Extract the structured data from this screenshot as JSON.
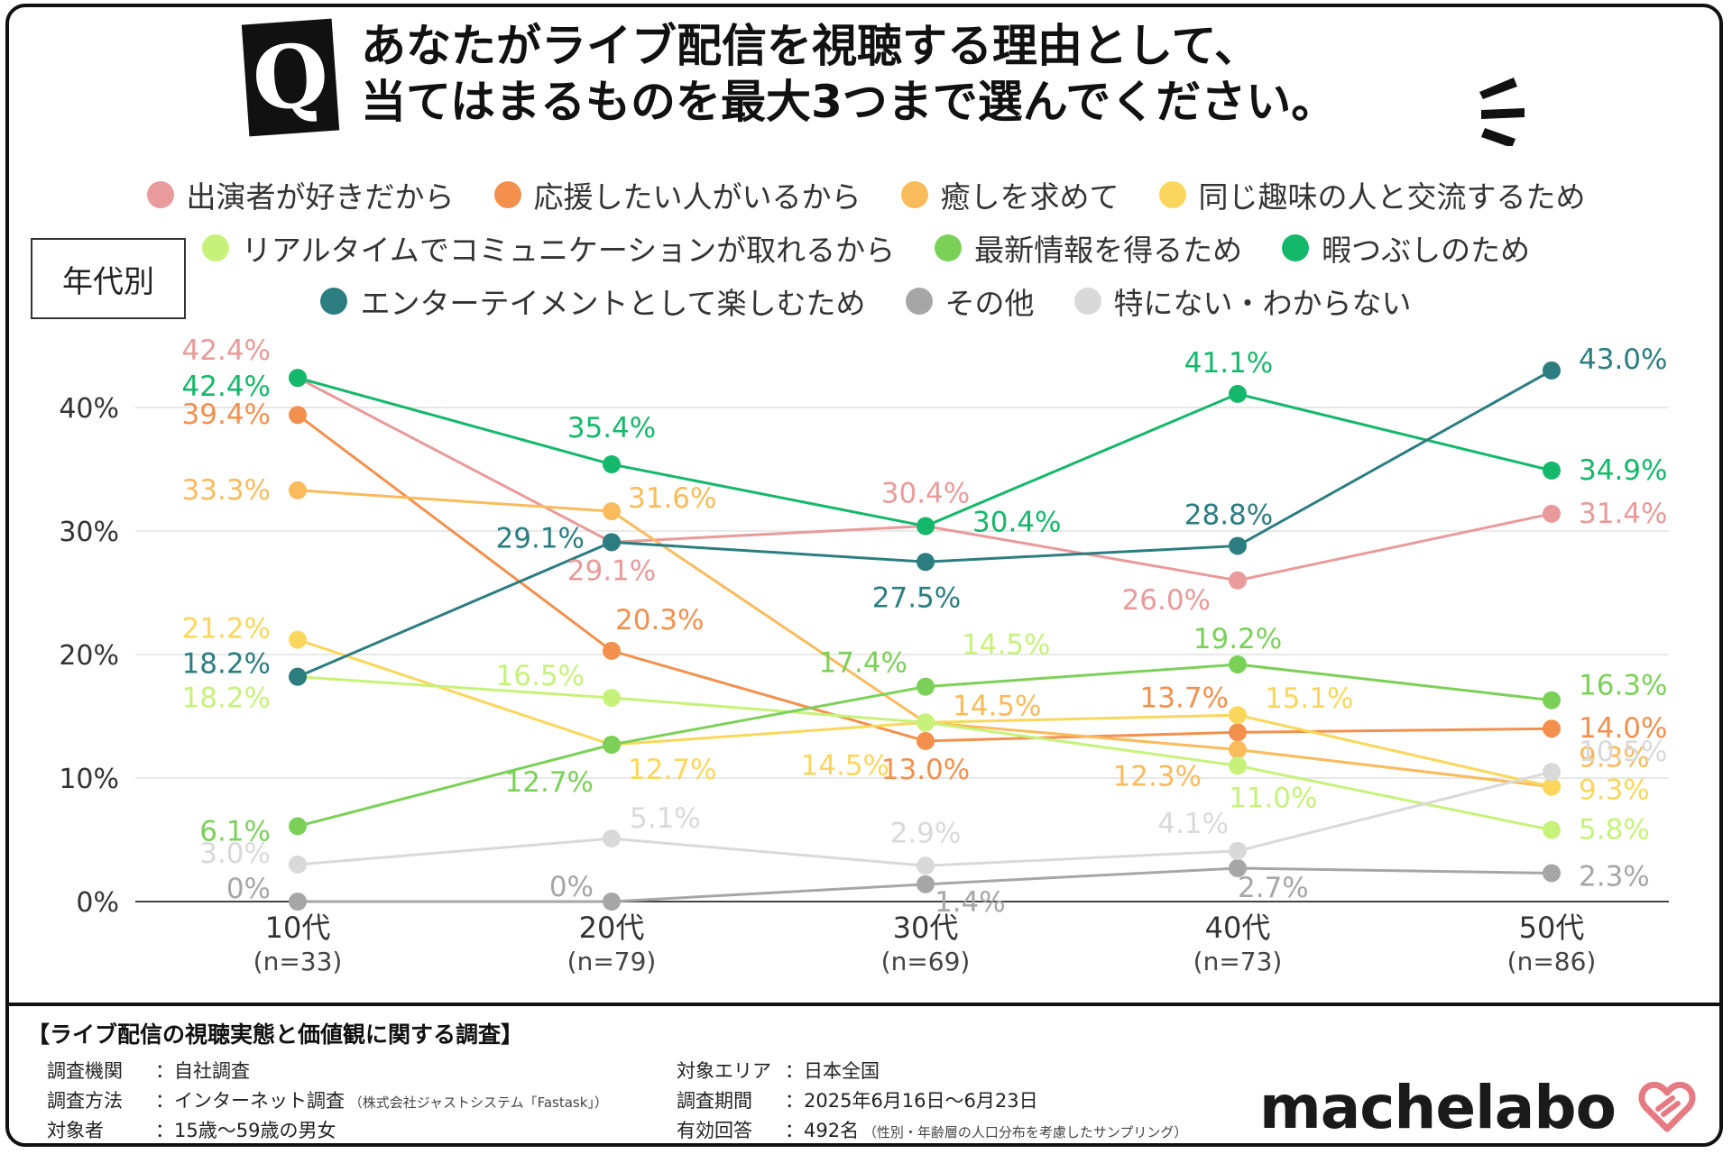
{
  "question_badge": "Q",
  "title_line1": "あなたがライブ配信を視聴する理由として、",
  "title_line2": "当てはまるものを最大3つまで選んでください。",
  "group_label": "年代別",
  "colors": {
    "frame": "#111111",
    "axis": "#444444",
    "grid": "#dddddd"
  },
  "chart_data": {
    "type": "line",
    "categories": [
      "10代",
      "20代",
      "30代",
      "40代",
      "50代"
    ],
    "category_n": [
      "(n=33)",
      "(n=79)",
      "(n=69)",
      "(n=73)",
      "(n=86)"
    ],
    "ylim": [
      0,
      45
    ],
    "yticks": [
      0,
      10,
      20,
      30,
      40
    ],
    "ytick_labels": [
      "0%",
      "10%",
      "20%",
      "30%",
      "40%"
    ],
    "series": [
      {
        "name": "出演者が好きだから",
        "color": "#e99a9a",
        "values": [
          42.4,
          29.1,
          30.4,
          26.0,
          31.4
        ],
        "labels": [
          "42.4%",
          "29.1%",
          "30.4%",
          "26.0%",
          "31.4%"
        ]
      },
      {
        "name": "応援したい人がいるから",
        "color": "#f3904d",
        "values": [
          39.4,
          20.3,
          13.0,
          13.7,
          14.0
        ],
        "labels": [
          "39.4%",
          "20.3%",
          "13.0%",
          "13.7%",
          "14.0%"
        ]
      },
      {
        "name": "癒しを求めて",
        "color": "#f9bb5c",
        "values": [
          33.3,
          31.6,
          14.5,
          12.3,
          9.3
        ],
        "labels": [
          "33.3%",
          "31.6%",
          "14.5%",
          "12.3%",
          "9.3%"
        ]
      },
      {
        "name": "同じ趣味の人と交流するため",
        "color": "#fad75c",
        "values": [
          21.2,
          12.7,
          14.5,
          15.1,
          9.3
        ],
        "labels": [
          "21.2%",
          "12.7%",
          "14.5%",
          "15.1%",
          "9.3%"
        ]
      },
      {
        "name": "リアルタイムでコミュニケーションが取れるから",
        "color": "#c7f27a",
        "values": [
          18.2,
          16.5,
          14.5,
          11.0,
          5.8
        ],
        "labels": [
          "18.2%",
          "16.5%",
          "14.5%",
          "11.0%",
          "5.8%"
        ]
      },
      {
        "name": "最新情報を得るため",
        "color": "#7bd158",
        "values": [
          6.1,
          12.7,
          17.4,
          19.2,
          16.3
        ],
        "labels": [
          "6.1%",
          "12.7%",
          "17.4%",
          "19.2%",
          "16.3%"
        ]
      },
      {
        "name": "暇つぶしのため",
        "color": "#14b86a",
        "values": [
          42.4,
          35.4,
          30.4,
          41.1,
          34.9
        ],
        "labels": [
          "42.4%",
          "35.4%",
          "30.4%",
          "41.1%",
          "34.9%"
        ]
      },
      {
        "name": "エンターテイメントとして楽しむため",
        "color": "#2b7d80",
        "values": [
          18.2,
          29.1,
          27.5,
          28.8,
          43.0
        ],
        "labels": [
          "18.2%",
          "29.1%",
          "27.5%",
          "28.8%",
          "43.0%"
        ]
      },
      {
        "name": "その他",
        "color": "#a6a6a6",
        "values": [
          0,
          0,
          1.4,
          2.7,
          2.3
        ],
        "labels": [
          "0%",
          "0%",
          "1.4%",
          "2.7%",
          "2.3%"
        ]
      },
      {
        "name": "特にない・わからない",
        "color": "#d9d9d9",
        "values": [
          3.0,
          5.1,
          2.9,
          4.1,
          10.5
        ],
        "labels": [
          "3.0%",
          "5.1%",
          "2.9%",
          "4.1%",
          "10.5%"
        ]
      }
    ]
  },
  "footer": {
    "survey_title": "【ライブ配信の視聴実態と価値観に関する調査】",
    "rows_left": [
      {
        "key": "調査機関",
        "value": "：自社調査",
        "note": ""
      },
      {
        "key": "調査方法",
        "value": "：インターネット調査",
        "note": "（株式会社ジャストシステム「Fastask」）"
      },
      {
        "key": "対象者",
        "value": "：15歳〜59歳の男女",
        "note": ""
      }
    ],
    "rows_right": [
      {
        "key": "対象エリア",
        "value": "：日本全国",
        "note": ""
      },
      {
        "key": "調査期間",
        "value": "：2025年6月16日〜6月23日",
        "note": ""
      },
      {
        "key": "有効回答",
        "value": "：492名",
        "note": "（性別・年齢層の人口分布を考慮したサンプリング）"
      }
    ],
    "logo": "machelabo"
  }
}
